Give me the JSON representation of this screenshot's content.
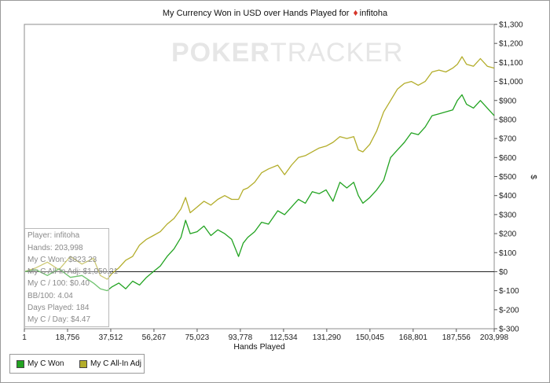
{
  "chart_data": {
    "type": "line",
    "title_prefix": "My Currency Won in USD over Hands Played for",
    "title_player": "infitoha",
    "xlabel": "Hands Played",
    "ylabel": "$",
    "xlim": [
      1,
      203998
    ],
    "ylim": [
      -300,
      1300
    ],
    "x_ticks": [
      1,
      18756,
      37512,
      56267,
      75023,
      93778,
      112534,
      131290,
      150045,
      168801,
      187556,
      203998
    ],
    "x_tick_labels": [
      "1",
      "18,756",
      "37,512",
      "56,267",
      "75,023",
      "93,778",
      "112,534",
      "131,290",
      "150,045",
      "168,801",
      "187,556",
      "203,998"
    ],
    "y_ticks": [
      -300,
      -200,
      -100,
      0,
      100,
      200,
      300,
      400,
      500,
      600,
      700,
      800,
      900,
      1000,
      1100,
      1200,
      1300
    ],
    "y_tick_labels": [
      "$-300",
      "$-200",
      "$-100",
      "$0",
      "$100",
      "$200",
      "$300",
      "$400",
      "$500",
      "$600",
      "$700",
      "$800",
      "$900",
      "$1,000",
      "$1,100",
      "$1,200",
      "$1,300"
    ],
    "legend_position": "bottom-left",
    "series": [
      {
        "name": "My C Won",
        "color": "#22a321",
        "x": [
          1,
          5000,
          10000,
          15000,
          20000,
          25000,
          30000,
          33000,
          36000,
          38000,
          41000,
          44000,
          47000,
          50000,
          53000,
          56000,
          59000,
          62000,
          65000,
          68000,
          70000,
          72000,
          75000,
          78000,
          81000,
          84000,
          87000,
          90000,
          93000,
          95000,
          97000,
          100000,
          103000,
          106000,
          110000,
          113000,
          116000,
          119000,
          122000,
          125000,
          128000,
          131000,
          134000,
          137000,
          140000,
          143000,
          145000,
          147000,
          150000,
          153000,
          156000,
          159000,
          162000,
          165000,
          168000,
          171000,
          174000,
          177000,
          180000,
          183000,
          186000,
          188000,
          190000,
          192000,
          195000,
          198000,
          201000,
          203998
        ],
        "y": [
          0,
          10,
          -20,
          15,
          -30,
          -20,
          -60,
          -90,
          -100,
          -80,
          -60,
          -90,
          -50,
          -70,
          -30,
          0,
          30,
          80,
          120,
          180,
          270,
          200,
          210,
          240,
          190,
          220,
          200,
          170,
          80,
          150,
          180,
          210,
          260,
          250,
          320,
          300,
          340,
          380,
          360,
          420,
          410,
          430,
          370,
          470,
          440,
          470,
          400,
          360,
          390,
          430,
          480,
          600,
          640,
          680,
          730,
          720,
          760,
          820,
          830,
          840,
          850,
          900,
          930,
          880,
          860,
          900,
          860,
          820
        ]
      },
      {
        "name": "My C All-In Adj",
        "color": "#b3ad2a",
        "x": [
          1,
          5000,
          10000,
          15000,
          20000,
          25000,
          30000,
          33000,
          36000,
          38000,
          41000,
          44000,
          47000,
          50000,
          53000,
          56000,
          59000,
          62000,
          65000,
          68000,
          70000,
          72000,
          75000,
          78000,
          81000,
          84000,
          87000,
          90000,
          93000,
          95000,
          97000,
          100000,
          103000,
          106000,
          110000,
          113000,
          116000,
          119000,
          122000,
          125000,
          128000,
          131000,
          134000,
          137000,
          140000,
          143000,
          145000,
          147000,
          150000,
          153000,
          156000,
          159000,
          162000,
          165000,
          168000,
          171000,
          174000,
          177000,
          180000,
          183000,
          186000,
          188000,
          190000,
          192000,
          195000,
          198000,
          201000,
          203998
        ],
        "y": [
          0,
          20,
          50,
          10,
          80,
          40,
          70,
          -20,
          -40,
          -10,
          20,
          60,
          80,
          140,
          170,
          190,
          210,
          250,
          280,
          330,
          390,
          310,
          340,
          370,
          350,
          380,
          400,
          380,
          380,
          430,
          440,
          470,
          520,
          540,
          560,
          510,
          560,
          600,
          610,
          630,
          650,
          660,
          680,
          710,
          700,
          710,
          640,
          630,
          670,
          740,
          840,
          900,
          960,
          990,
          1000,
          980,
          1000,
          1050,
          1060,
          1050,
          1070,
          1090,
          1130,
          1090,
          1080,
          1120,
          1080,
          1070
        ]
      }
    ]
  },
  "info_box": {
    "player": "Player: infitoha",
    "hands": "Hands: 203,998",
    "won": "My C Won: $823.23",
    "allin_adj": "My C All-In Adj: $1,050.21",
    "per_100": "My C / 100: $0.40",
    "bb_100": "BB/100: 4.04",
    "days_played": "Days Played: 184",
    "per_day": "My C / Day: $4.47"
  },
  "watermark": {
    "part1": "POKER",
    "part2": "TRACKER"
  }
}
